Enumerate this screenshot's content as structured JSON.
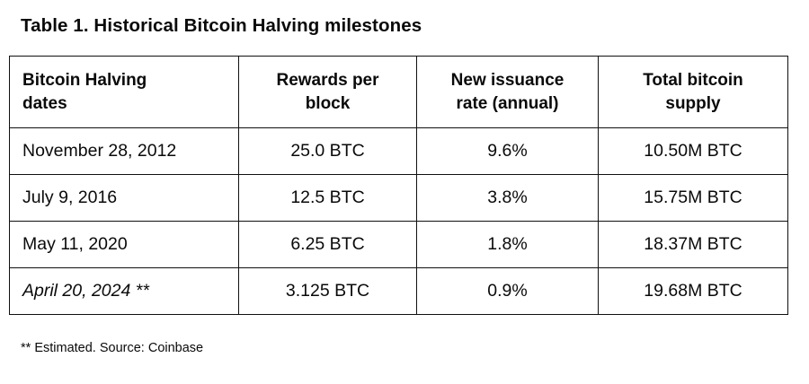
{
  "title": "Table 1. Historical Bitcoin Halving milestones",
  "table": {
    "headers": [
      "Bitcoin Halving\ndates",
      "Rewards per\nblock",
      "New issuance\nrate (annual)",
      "Total bitcoin\nsupply"
    ],
    "rows": [
      [
        "November 28, 2012",
        "25.0 BTC",
        "9.6%",
        "10.50M BTC"
      ],
      [
        "July 9, 2016",
        "12.5 BTC",
        "3.8%",
        "15.75M BTC"
      ],
      [
        "May 11, 2020",
        "6.25 BTC",
        "1.8%",
        "18.37M BTC"
      ],
      [
        "April 20, 2024 **",
        "3.125 BTC",
        "0.9%",
        "19.68M BTC"
      ]
    ]
  },
  "footnote": "** Estimated. Source: Coinbase",
  "colors": {
    "background": "#ffffff",
    "text": "#0a0a0a",
    "table_border": "#101010"
  }
}
